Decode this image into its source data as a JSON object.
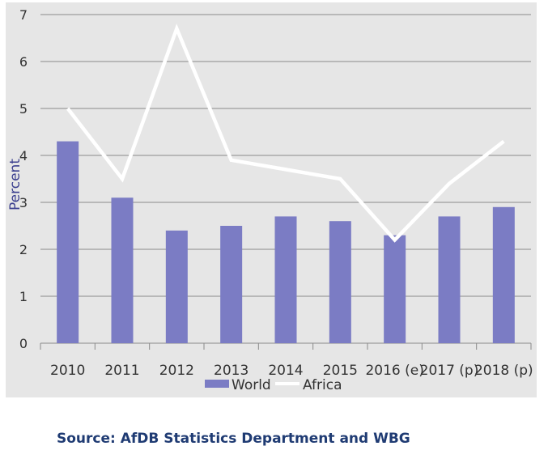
{
  "chart_data": {
    "type": "bar",
    "categories": [
      "2010",
      "2011",
      "2012",
      "2013",
      "2014",
      "2015",
      "2016 (e)",
      "2017 (p)",
      "2018 (p)"
    ],
    "series": [
      {
        "name": "World",
        "type": "bar",
        "values": [
          4.3,
          3.1,
          2.4,
          2.5,
          2.7,
          2.6,
          2.3,
          2.7,
          2.9
        ]
      },
      {
        "name": "Africa",
        "type": "line",
        "values": [
          5.0,
          3.5,
          6.7,
          3.9,
          3.7,
          3.5,
          2.2,
          3.4,
          4.3
        ]
      }
    ],
    "ylabel": "Percent",
    "ylim": [
      0,
      7
    ],
    "yticks": [
      "0",
      "1",
      "2",
      "3",
      "4",
      "5",
      "6",
      "7"
    ],
    "grid": true,
    "legend": "bottom",
    "colors": {
      "bar": "#7b7cc4",
      "line": "#ffffff",
      "background": "#e6e6e6",
      "grid": "#8a8a8a"
    }
  },
  "source_text": "Source: AfDB Statistics Department and WBG"
}
